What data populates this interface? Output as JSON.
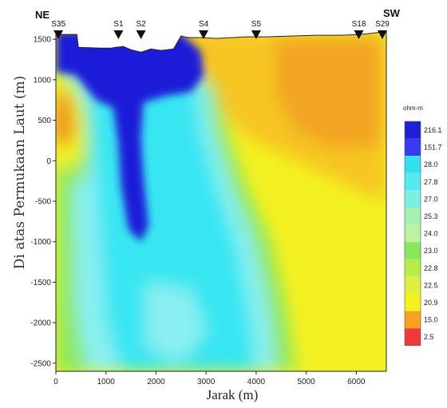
{
  "chart_data": {
    "type": "heatmap",
    "title": "",
    "xlabel": "Jarak (m)",
    "ylabel": "Di atas Permukaan Laut (m)",
    "xlim": [
      0,
      6600
    ],
    "ylim": [
      -2600,
      1600
    ],
    "x_ticks": [
      0,
      1000,
      2000,
      3000,
      4000,
      5000,
      6000
    ],
    "y_ticks": [
      1500,
      1000,
      500,
      0,
      -500,
      -1000,
      -1500,
      -2000,
      -2500
    ],
    "direction_left": "NE",
    "direction_right": "SW",
    "stations": [
      {
        "name": "S35",
        "x": 50
      },
      {
        "name": "S1",
        "x": 1250
      },
      {
        "name": "S2",
        "x": 1700
      },
      {
        "name": "S4",
        "x": 2950
      },
      {
        "name": "S5",
        "x": 4000
      },
      {
        "name": "S18",
        "x": 6050
      },
      {
        "name": "S29",
        "x": 6520
      }
    ],
    "colorbar": {
      "title": "ohm-m",
      "labels": [
        "216.1",
        "151.7",
        "28.0",
        "27.8",
        "27.0",
        "25.3",
        "24.0",
        "23.0",
        "22.8",
        "22.5",
        "20.9",
        "15.0",
        "2.5"
      ],
      "colors": [
        "#1f1fd6",
        "#3a3af0",
        "#33e0ee",
        "#55eaf0",
        "#7af0e0",
        "#a6f0b0",
        "#bdf2a0",
        "#86e85a",
        "#b4ee48",
        "#ddf040",
        "#f3f21e",
        "#f8a020",
        "#ef3a3a"
      ]
    },
    "palette": {
      "deep_blue": "#1e1ed8",
      "cyan": "#37e6f2",
      "light_cyan": "#8aeff0",
      "green": "#8ee85e",
      "yellow": "#f3f121",
      "light_orange": "#f6c522",
      "orange": "#f2a424",
      "dark_orange": "#ee7a22"
    }
  }
}
